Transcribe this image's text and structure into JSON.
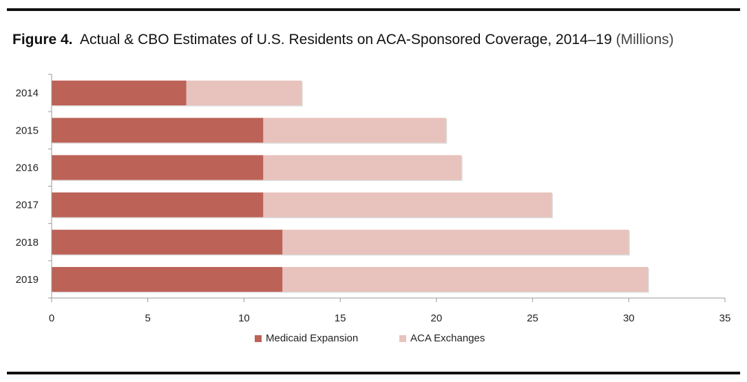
{
  "chart_data": {
    "type": "bar",
    "orientation": "horizontal",
    "stacked": true,
    "title_prefix": "Figure 4.",
    "title": "Actual & CBO Estimates of U.S. Residents on ACA-Sponsored Coverage, 2014–19",
    "unit": "(Millions)",
    "categories": [
      "2014",
      "2015",
      "2016",
      "2017",
      "2018",
      "2019"
    ],
    "series": [
      {
        "name": "Medicaid Expansion",
        "color": "#BC6257",
        "values": [
          7,
          11,
          11,
          11,
          12,
          12
        ]
      },
      {
        "name": "ACA Exchanges",
        "color": "#E8C2BC",
        "values": [
          6,
          9.5,
          10.3,
          15,
          18,
          19
        ]
      }
    ],
    "xlim": [
      0,
      35
    ],
    "xticks": [
      "0",
      "5",
      "10",
      "15",
      "20",
      "25",
      "30",
      "35"
    ],
    "grid": false,
    "legend": "bottom"
  }
}
